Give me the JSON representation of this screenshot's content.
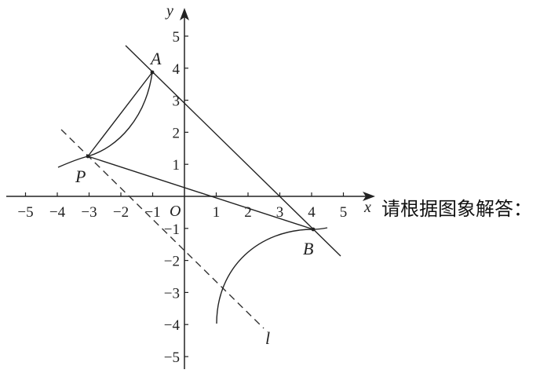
{
  "axes": {
    "x_label": "x",
    "y_label": "y",
    "origin_label": "O",
    "x_ticks": [
      -5,
      -4,
      -3,
      -2,
      -1,
      1,
      2,
      3,
      4,
      5
    ],
    "y_ticks": [
      -5,
      -4,
      -3,
      -2,
      -1,
      1,
      2,
      3,
      4,
      5
    ],
    "x_range": [
      -5.5,
      5.6
    ],
    "y_range": [
      -5.5,
      5.9
    ]
  },
  "points": [
    {
      "name": "A",
      "x": -1,
      "y": 4
    },
    {
      "name": "P",
      "x": -3,
      "y": 1.333
    },
    {
      "name": "B",
      "x": 4,
      "y": -1
    }
  ],
  "line_l": {
    "name": "l",
    "style": "dashed"
  },
  "prompt": "请根据图象解答："
}
